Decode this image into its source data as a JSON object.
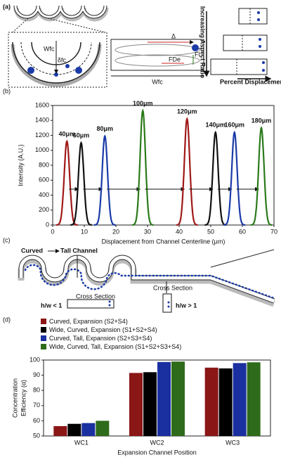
{
  "panel_labels": [
    "(a)",
    "(b)",
    "(c)",
    "(d)"
  ],
  "diagram_a": {
    "wc": "Wfc",
    "delta_fc": "δfc",
    "delta": "Δ",
    "force_lift": "FL",
    "force_dean": "FDe",
    "channel_width": "Wfc",
    "aspect_ratio": "Increasing Aspect Ratio",
    "displacement": "Percent Displacement"
  },
  "diagram_c": {
    "curved": "Curved",
    "tall": "Tall Channel",
    "section_left": "Cross Section",
    "section_right": "Cross Section",
    "ratio_low": "h/w < 1",
    "ratio_high": "h/w > 1"
  },
  "chart_data": [
    {
      "type": "peaks",
      "y_label": "Intensity (A.U.)",
      "x_label": "Displacement from Channel Centerline (μm)",
      "xlim": [
        0,
        70
      ],
      "xticks": [
        0,
        10,
        20,
        30,
        40,
        50,
        60,
        70
      ],
      "ylim": [
        0,
        1600
      ],
      "yticks": [
        0,
        200,
        400,
        600,
        800,
        1000,
        1200,
        1400,
        1600
      ],
      "series": [
        {
          "name": "40μm",
          "color": "#a01818",
          "x": 4.5,
          "value": 1120
        },
        {
          "name": "60μm",
          "color": "#111111",
          "x": 9,
          "value": 1100
        },
        {
          "name": "80μm",
          "color": "#1a3aa8",
          "x": 16.5,
          "value": 1190
        },
        {
          "name": "100μm",
          "color": "#2a7a1a",
          "x": 28.5,
          "value": 1530
        },
        {
          "name": "120μm",
          "color": "#a01818",
          "x": 42.5,
          "value": 1420
        },
        {
          "name": "140μm",
          "color": "#111111",
          "x": 51.5,
          "value": 1240
        },
        {
          "name": "160μm",
          "color": "#1a3aa8",
          "x": 57.5,
          "value": 1240
        },
        {
          "name": "180μm",
          "color": "#2a7a1a",
          "x": 66,
          "value": 1300
        }
      ]
    },
    {
      "type": "bar",
      "y_label": [
        "Concentration",
        "Efficiency (α)"
      ],
      "x_label": "Expansion Channel Position",
      "categories": [
        "WC1",
        "WC2",
        "WC3"
      ],
      "ylim": [
        50,
        100
      ],
      "yticks": [
        50,
        60,
        70,
        80,
        90,
        100
      ],
      "series": [
        {
          "name": "Curved, Expansion (S2+S4)",
          "color": "#8b1616",
          "values": [
            56.5,
            91.5,
            95
          ]
        },
        {
          "name": "Wide, Curved, Expansion (S1+S2+S4)",
          "color": "#000000",
          "values": [
            58,
            92,
            94.5
          ]
        },
        {
          "name": "Curved, Tall, Expansion (S2+S3+S4)",
          "color": "#1a2fa0",
          "values": [
            58.5,
            98.7,
            98
          ]
        },
        {
          "name": "Wide, Curved, Tall, Expansion (S1+S2+S3+S4)",
          "color": "#2e6b1a",
          "values": [
            60,
            99,
            98.5
          ]
        }
      ]
    }
  ]
}
